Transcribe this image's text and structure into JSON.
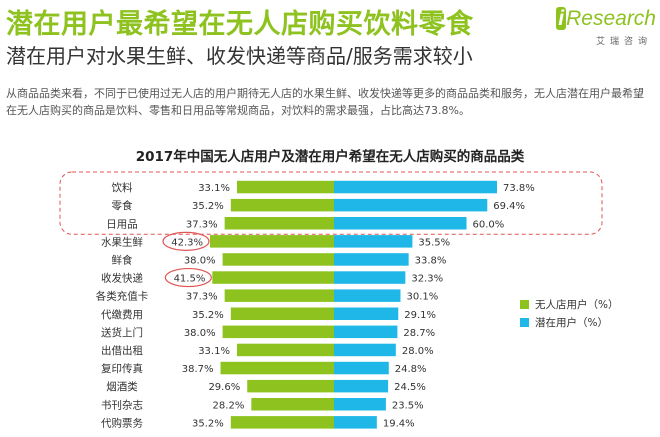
{
  "title": "潜在用户最希望在无人店购买饮料零食",
  "subtitle": "潜在用户对水果生鲜、收发快递等商品/服务需求较小",
  "description": "从商品品类来看，不同于已使用过无人店的用户期待无人店的水果生鲜、收发快递等更多的商品品类和服务，无人店潜在用户最希望在无人店购买的商品是饮料、零售和日用品等常规商品，对饮料的需求最强，占比高达73.8%。",
  "brand": {
    "prefix": "i",
    "name": "Research",
    "sub": "艾瑞咨询"
  },
  "colors": {
    "existing": "#8dc21f",
    "potential": "#1fb7e8",
    "highlight": "#e05555",
    "title": "#8dc21f"
  },
  "chart_data": {
    "type": "bar",
    "orientation": "horizontal-butterfly",
    "title": "2017年中国无人店用户及潜在用户希望在无人店购买的商品品类",
    "categories": [
      "饮料",
      "零食",
      "日用品",
      "水果生鲜",
      "鲜食",
      "收发快递",
      "各类充值卡",
      "代缴费用",
      "送货上门",
      "出借出租",
      "复印传真",
      "烟酒类",
      "书刊杂志",
      "代购票务"
    ],
    "series": [
      {
        "name": "无人店用户（%）",
        "values": [
          33.1,
          35.2,
          37.3,
          42.3,
          38.0,
          41.5,
          37.3,
          35.2,
          38.0,
          33.1,
          38.7,
          29.6,
          28.2,
          35.2
        ],
        "labels": [
          "33.1%",
          "35.2%",
          "37.3%",
          "42.3%",
          "38.0%",
          "41.5%",
          "37.3%",
          "35.2%",
          "38.0%",
          "33.1%",
          "38.7%",
          "29.6%",
          "28.2%",
          "35.2%"
        ]
      },
      {
        "name": "潜在用户（%）",
        "values": [
          73.8,
          69.4,
          60.0,
          35.5,
          33.8,
          32.3,
          30.1,
          29.1,
          28.7,
          28.0,
          24.8,
          24.5,
          23.5,
          19.4
        ],
        "labels": [
          "73.8%",
          "69.4%",
          "60.0%",
          "35.5%",
          "33.8%",
          "32.3%",
          "30.1%",
          "29.1%",
          "28.7%",
          "28.0%",
          "24.8%",
          "24.5%",
          "23.5%",
          "19.4%"
        ]
      }
    ],
    "highlighted_group": [
      "饮料",
      "零食",
      "日用品"
    ],
    "circled_values": [
      "42.3%",
      "41.5%"
    ],
    "legend_position": "right"
  }
}
